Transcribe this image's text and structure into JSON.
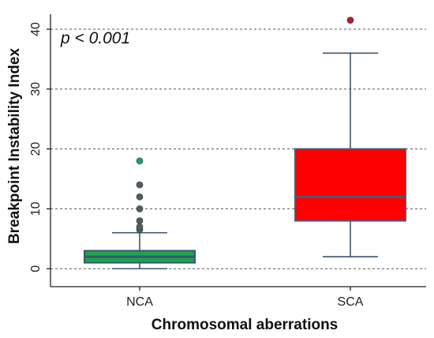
{
  "chart_data": {
    "type": "box",
    "ylabel": "Breakpoint Instability Index",
    "xlabel": "Chromosomal aberrations",
    "annotation": "p < 0.001",
    "ylim": [
      -3,
      42.5
    ],
    "yticks": [
      0,
      10,
      20,
      30,
      40
    ],
    "grid": "horizontal-dashed",
    "categories": [
      "NCA",
      "SCA"
    ],
    "boxes": [
      {
        "category": "NCA",
        "min": 0,
        "q1": 1,
        "median": 2,
        "q3": 3,
        "max": 6,
        "outliers": [
          6.5,
          7,
          8,
          10,
          12,
          14,
          18
        ],
        "fill": "#1aa64b",
        "edge": "#3d5570"
      },
      {
        "category": "SCA",
        "min": 2,
        "q1": 8,
        "median": 12,
        "q3": 20,
        "max": 36,
        "outliers": [
          41.5
        ],
        "fill": "#ff0000",
        "edge": "#4a5a78"
      }
    ],
    "colors": {
      "whisker": "#3d5570",
      "nca_outlier": "#50605f",
      "nca_top_outlier": "#17a36b",
      "sca_outlier": "#b51c2c"
    }
  }
}
